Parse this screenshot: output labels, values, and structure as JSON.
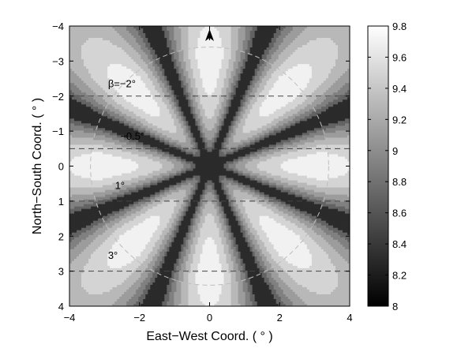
{
  "chart_data": {
    "type": "heatmap",
    "title": "",
    "xlabel": "East−West Coord. ( ° )",
    "ylabel": "North−South Coord. ( ° )",
    "xlim": [
      -4,
      4
    ],
    "ylim": [
      -4,
      4
    ],
    "y_axis_inverted": true,
    "xticks": [
      -4,
      -2,
      0,
      2,
      4
    ],
    "xtick_labels": [
      "−4",
      "−2",
      "0",
      "2",
      "4"
    ],
    "yticks": [
      -4,
      -3,
      -2,
      -1,
      0,
      1,
      2,
      3,
      4
    ],
    "ytick_labels": [
      "−4",
      "−3",
      "−2",
      "−1",
      "0",
      "1",
      "2",
      "3",
      "4"
    ],
    "colorbar": {
      "min": 8,
      "max": 9.8,
      "ticks": [
        8,
        8.2,
        8.4,
        8.6,
        8.8,
        9,
        9.2,
        9.4,
        9.6,
        9.8
      ],
      "tick_labels": [
        "8",
        "8.2",
        "8.4",
        "8.6",
        "8.8",
        "9",
        "9.2",
        "9.4",
        "9.6",
        "9.8"
      ],
      "colormap": "gray"
    },
    "contour_levels": [
      8.6,
      8.8,
      9.0,
      9.2,
      9.4,
      9.6
    ],
    "field": {
      "description": "eight-lobed angular pattern, minimum 8 at center, lobes at 0,45,90,... degrees",
      "center_value": 8.0,
      "lobe_max": 9.8,
      "lobe_count": 8
    },
    "beta_lines": [
      {
        "label": "β=−2°",
        "y": -2
      },
      {
        "label": "−0.5°",
        "y": -0.5
      },
      {
        "label": "1°",
        "y": 1
      },
      {
        "label": "3°",
        "y": 3
      }
    ],
    "circle_radius": 3.4,
    "grid": false,
    "north_arrow": true
  }
}
